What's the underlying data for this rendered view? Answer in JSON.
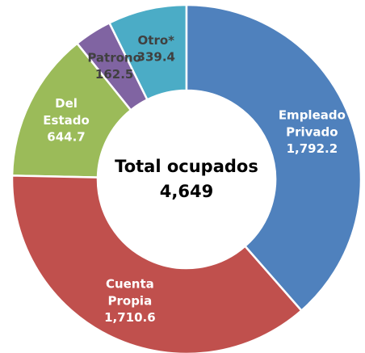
{
  "chart_data": {
    "type": "donut",
    "categories": [
      "Empleado Privado",
      "Cuenta Propia",
      "Del Estado",
      "Patrono",
      "Otro*"
    ],
    "values": [
      1792.2,
      1710.6,
      644.7,
      162.5,
      339.4
    ],
    "value_labels": [
      "1,792.2",
      "1,710.6",
      "644.7",
      "162.5",
      "339.4"
    ],
    "colors": [
      "#4f81bd",
      "#c0504d",
      "#9bbb59",
      "#8064a2",
      "#4bacc6"
    ],
    "label_colors": [
      "#ffffff",
      "#ffffff",
      "#ffffff",
      "#404040",
      "#404040"
    ],
    "center_title": "Total ocupados",
    "center_value": "4,649"
  }
}
